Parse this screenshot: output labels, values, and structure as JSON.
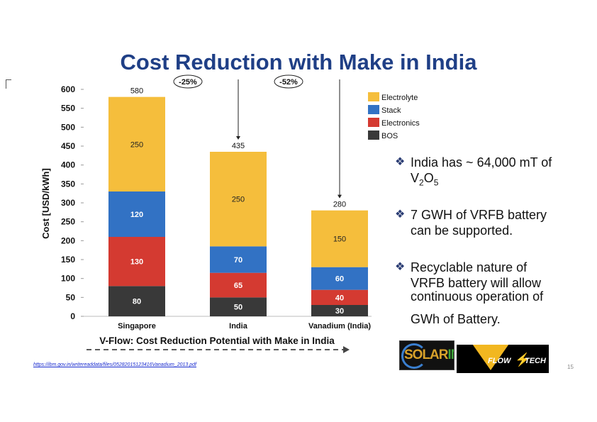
{
  "slide": {
    "title": "Cost Reduction with Make in India",
    "subtitle_caption": "V-Flow: Cost Reduction Potential with Make in India",
    "source_link": "https://ibm.gov.in/writereaddata/files/05282015123416Vanadium_2013.pdf",
    "page_number": "15",
    "bullets": {
      "b1_line1": "India has ~ 64,000 mT of",
      "b1_line2_main": "V",
      "b1_line2_sub1": "2",
      "b1_line2_mid": "O",
      "b1_line2_sub2": "5",
      "b2_line1": "7 GWH of VRFB battery",
      "b2_line2": "can be supported.",
      "b3_line1": "Recyclable nature of",
      "b3_line2": "VRFB battery will allow",
      "b3_line3": "continuous operation of",
      "b3_line4": "GWh of Battery."
    },
    "logos": {
      "solar_part1": "SOLAR",
      "solar_part2": "IN",
      "vflow_left": "FLOW",
      "vflow_right": "TECH"
    },
    "colors": {
      "title": "#1f3f86",
      "electrolyte": "#f5be3c",
      "stack": "#3272c4",
      "electronics": "#d43a31",
      "bos": "#393939"
    }
  },
  "chart_data": {
    "type": "bar",
    "stacked": true,
    "title": "",
    "xlabel": "",
    "ylabel": "Cost [USD/kWh]",
    "ylim": [
      0,
      600
    ],
    "yticks": [
      0,
      50,
      100,
      150,
      200,
      250,
      300,
      350,
      400,
      450,
      500,
      550,
      600
    ],
    "categories": [
      "Singapore",
      "India",
      "Vanadium (India)"
    ],
    "totals": [
      580,
      435,
      280
    ],
    "series": [
      {
        "name": "BOS",
        "values": [
          80,
          50,
          30
        ]
      },
      {
        "name": "Electronics",
        "values": [
          130,
          65,
          40
        ]
      },
      {
        "name": "Stack",
        "values": [
          120,
          70,
          60
        ]
      },
      {
        "name": "Electrolyte",
        "values": [
          250,
          250,
          150
        ]
      }
    ],
    "legend_order": [
      "Electrolyte",
      "Stack",
      "Electronics",
      "BOS"
    ],
    "legend_position": "top-right",
    "annotations": [
      "-25%",
      "-52%"
    ]
  }
}
